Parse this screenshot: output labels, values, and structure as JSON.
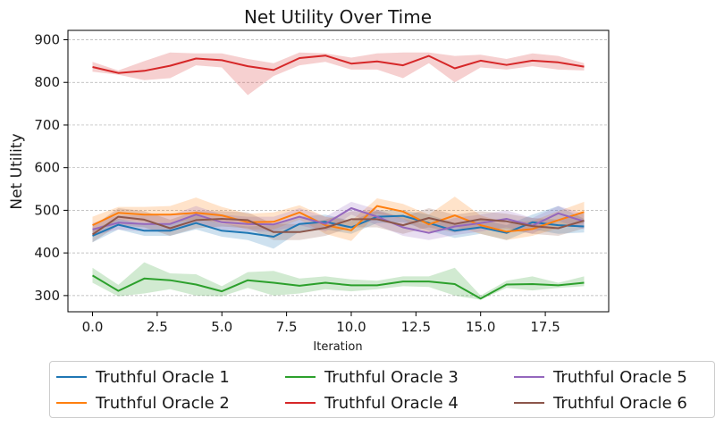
{
  "chart_data": {
    "type": "line",
    "title": "Net Utility Over Time",
    "xlabel": "Iteration",
    "ylabel": "Net Utility",
    "xlim": [
      -0.95,
      19.95
    ],
    "ylim": [
      262,
      922
    ],
    "xticks": [
      0.0,
      2.5,
      5.0,
      7.5,
      10.0,
      12.5,
      15.0,
      17.5
    ],
    "xtick_labels": [
      "0.0",
      "2.5",
      "5.0",
      "7.5",
      "10.0",
      "12.5",
      "15.0",
      "17.5"
    ],
    "yticks": [
      300,
      400,
      500,
      600,
      700,
      800,
      900
    ],
    "ytick_labels": [
      "300",
      "400",
      "500",
      "600",
      "700",
      "800",
      "900"
    ],
    "grid": "y-dashed",
    "legend_position": "below",
    "x": [
      0,
      1,
      2,
      3,
      4,
      5,
      6,
      7,
      8,
      9,
      10,
      11,
      12,
      13,
      14,
      15,
      16,
      17,
      18,
      19
    ],
    "series": [
      {
        "name": "Truthful Oracle 1",
        "color": "#1f77b4",
        "values": [
          440,
          466,
          452,
          452,
          470,
          452,
          447,
          438,
          468,
          473,
          460,
          485,
          487,
          470,
          452,
          460,
          447,
          472,
          465,
          462
        ],
        "lower": [
          425,
          455,
          440,
          440,
          455,
          438,
          430,
          410,
          450,
          455,
          445,
          470,
          472,
          452,
          435,
          445,
          430,
          455,
          445,
          448
        ],
        "upper": [
          455,
          480,
          468,
          468,
          488,
          468,
          462,
          465,
          485,
          490,
          475,
          500,
          500,
          490,
          470,
          478,
          465,
          490,
          510,
          480
        ]
      },
      {
        "name": "Truthful Oracle 2",
        "color": "#ff7f0e",
        "values": [
          465,
          494,
          490,
          490,
          494,
          488,
          472,
          473,
          495,
          465,
          453,
          510,
          497,
          467,
          488,
          465,
          450,
          456,
          477,
          496
        ],
        "lower": [
          445,
          478,
          472,
          470,
          478,
          470,
          455,
          455,
          478,
          445,
          428,
          492,
          480,
          445,
          462,
          445,
          430,
          440,
          458,
          470
        ],
        "upper": [
          485,
          508,
          508,
          510,
          530,
          508,
          492,
          495,
          512,
          485,
          475,
          528,
          515,
          490,
          532,
          488,
          470,
          475,
          498,
          520
        ]
      },
      {
        "name": "Truthful Oracle 3",
        "color": "#2ca02c",
        "values": [
          347,
          311,
          340,
          336,
          326,
          310,
          336,
          330,
          323,
          330,
          324,
          324,
          333,
          333,
          327,
          293,
          326,
          327,
          324,
          330
        ],
        "lower": [
          330,
          298,
          305,
          315,
          300,
          298,
          318,
          300,
          305,
          315,
          310,
          315,
          322,
          320,
          300,
          290,
          318,
          312,
          318,
          322
        ],
        "upper": [
          365,
          325,
          378,
          352,
          350,
          322,
          355,
          358,
          340,
          345,
          338,
          335,
          345,
          345,
          365,
          300,
          335,
          345,
          330,
          345
        ]
      },
      {
        "name": "Truthful Oracle 4",
        "color": "#d62728",
        "values": [
          836,
          822,
          827,
          839,
          856,
          852,
          838,
          829,
          857,
          863,
          844,
          849,
          840,
          862,
          833,
          851,
          841,
          851,
          847,
          837
        ],
        "lower": [
          825,
          818,
          805,
          810,
          840,
          835,
          770,
          815,
          840,
          848,
          830,
          830,
          810,
          845,
          800,
          835,
          830,
          838,
          830,
          828
        ],
        "upper": [
          848,
          828,
          850,
          870,
          868,
          868,
          855,
          845,
          870,
          868,
          858,
          868,
          870,
          870,
          862,
          865,
          855,
          868,
          862,
          845
        ]
      },
      {
        "name": "Truthful Oracle 5",
        "color": "#9467bd",
        "values": [
          455,
          471,
          468,
          468,
          490,
          472,
          468,
          467,
          485,
          468,
          505,
          485,
          460,
          447,
          462,
          470,
          480,
          464,
          493,
          474
        ],
        "lower": [
          440,
          455,
          450,
          450,
          470,
          455,
          450,
          450,
          465,
          450,
          490,
          465,
          440,
          430,
          442,
          450,
          460,
          445,
          475,
          455
        ],
        "upper": [
          470,
          488,
          488,
          488,
          510,
          490,
          485,
          485,
          505,
          485,
          520,
          502,
          480,
          465,
          482,
          490,
          500,
          482,
          510,
          492
        ]
      },
      {
        "name": "Truthful Oracle 6",
        "color": "#8c564b",
        "values": [
          443,
          485,
          478,
          458,
          477,
          480,
          477,
          449,
          449,
          459,
          479,
          479,
          465,
          482,
          468,
          479,
          474,
          463,
          458,
          476
        ],
        "lower": [
          425,
          465,
          460,
          440,
          458,
          462,
          458,
          430,
          430,
          440,
          460,
          460,
          445,
          460,
          448,
          460,
          455,
          445,
          440,
          458
        ],
        "upper": [
          462,
          505,
          498,
          478,
          498,
          498,
          495,
          468,
          468,
          478,
          498,
          498,
          485,
          505,
          490,
          498,
          492,
          482,
          478,
          495
        ]
      }
    ]
  }
}
